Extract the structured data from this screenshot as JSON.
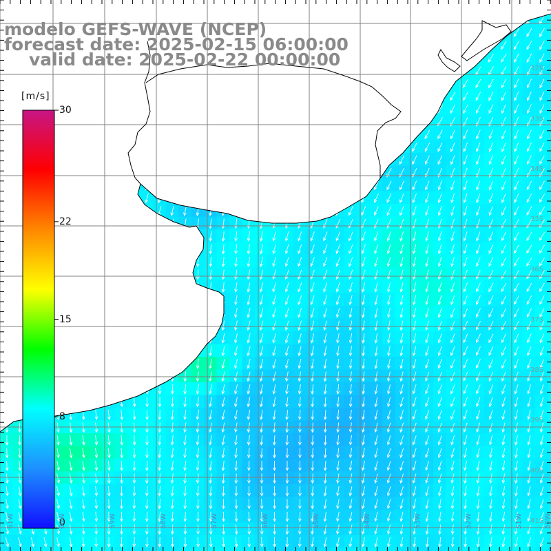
{
  "header": {
    "line1": "modelo GEFS-WAVE (NCEP)",
    "line2": "forecast date: 2025-02-15 06:00:00",
    "line3": "valid date: 2025-02-22 00:00:00"
  },
  "colorbar": {
    "unit": "[m/s]",
    "ticks": [
      {
        "value": 30,
        "label": "30"
      },
      {
        "value": 22,
        "label": "22"
      },
      {
        "value": 15,
        "label": "15"
      },
      {
        "value": 8,
        "label": "8"
      },
      {
        "value": 0,
        "label": "0"
      }
    ],
    "min": 0,
    "max": 30,
    "stops": [
      "#1010ff",
      "#1e90ff",
      "#00ffff",
      "#00ff00",
      "#ffff00",
      "#ff8800",
      "#ff0000",
      "#c71585"
    ]
  },
  "map": {
    "latitude_labels": [
      "32S",
      "33S",
      "34S",
      "35S",
      "36S",
      "37S",
      "38S",
      "39S",
      "40S",
      "41S"
    ],
    "longitude_labels": [
      "61W",
      "60W",
      "59W",
      "58W",
      "57W",
      "56W",
      "55W",
      "54W",
      "53W",
      "52W",
      "51W",
      "50W"
    ],
    "colors": {
      "land": "#ffffff",
      "coastline": "#000000",
      "grid": "#808080",
      "arrows": "#ffffff",
      "title": "#8a8a8a",
      "lat_label": "#6fa6a8",
      "lon_label": "#5a86b8"
    },
    "icons": {
      "arrow": "wind-arrow-icon"
    }
  }
}
